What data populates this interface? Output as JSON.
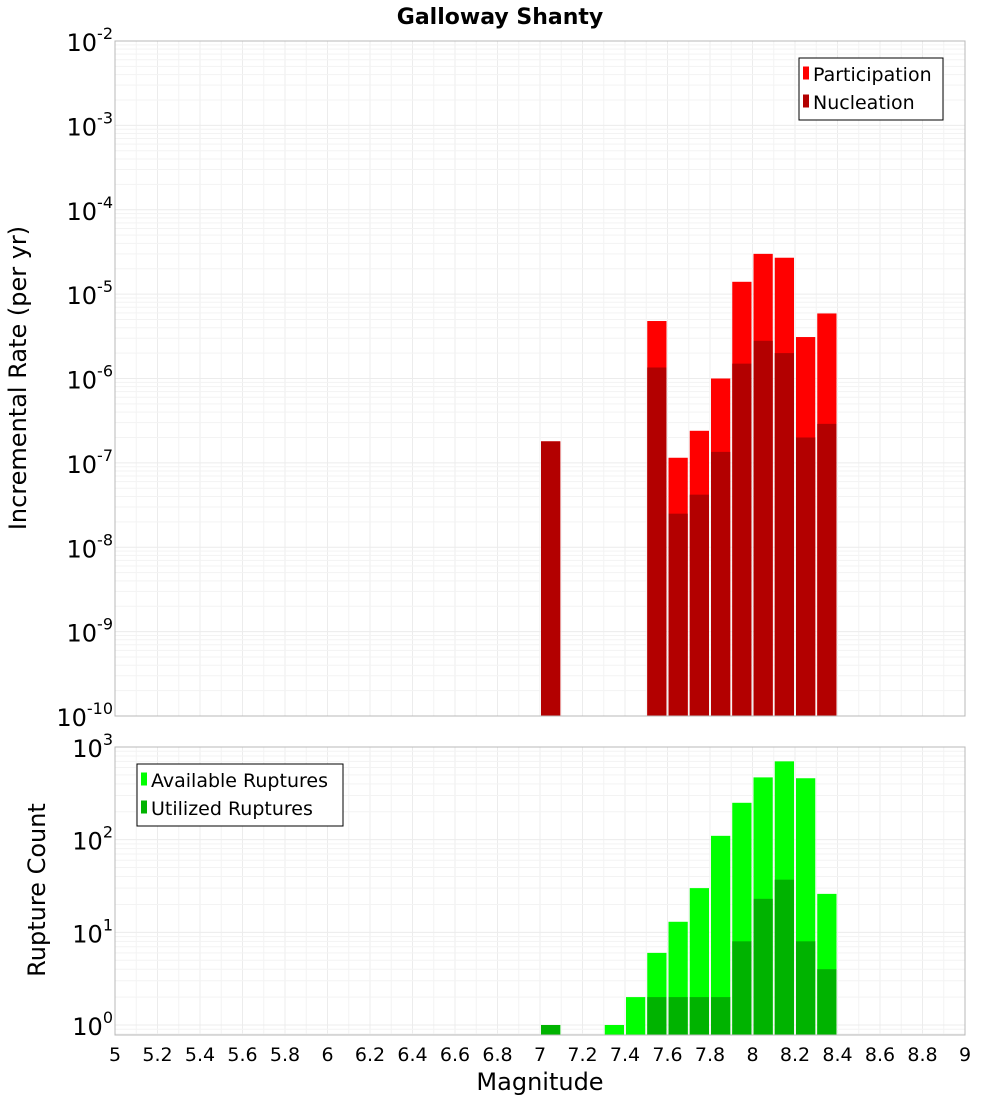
{
  "chart_data": [
    {
      "type": "bar",
      "title": "Galloway Shanty",
      "xlabel": "",
      "ylabel": "Incremental Rate (per yr)",
      "yscale": "log",
      "ylim": [
        1e-10,
        0.01
      ],
      "xlim": [
        5,
        9
      ],
      "grid": true,
      "legend_position": "top-right",
      "overlay": true,
      "y_tick_labels": [
        {
          "base": "10",
          "exp": "-10"
        },
        {
          "base": "10",
          "exp": "-9"
        },
        {
          "base": "10",
          "exp": "-8"
        },
        {
          "base": "10",
          "exp": "-7"
        },
        {
          "base": "10",
          "exp": "-6"
        },
        {
          "base": "10",
          "exp": "-5"
        },
        {
          "base": "10",
          "exp": "-4"
        },
        {
          "base": "10",
          "exp": "-3"
        },
        {
          "base": "10",
          "exp": "-2"
        }
      ],
      "bin_width": 0.1,
      "series": [
        {
          "name": "Participation",
          "color": "#ff0000",
          "points": [
            {
              "x": 7.05,
              "y": 1.8e-07
            },
            {
              "x": 7.55,
              "y": 4.8e-06
            },
            {
              "x": 7.65,
              "y": 1.15e-07
            },
            {
              "x": 7.75,
              "y": 2.4e-07
            },
            {
              "x": 7.85,
              "y": 1e-06
            },
            {
              "x": 7.95,
              "y": 1.4e-05
            },
            {
              "x": 8.05,
              "y": 3e-05
            },
            {
              "x": 8.15,
              "y": 2.7e-05
            },
            {
              "x": 8.25,
              "y": 3.1e-06
            },
            {
              "x": 8.35,
              "y": 5.9e-06
            }
          ]
        },
        {
          "name": "Nucleation",
          "color": "#b30000",
          "points": [
            {
              "x": 7.05,
              "y": 1.8e-07
            },
            {
              "x": 7.55,
              "y": 1.35e-06
            },
            {
              "x": 7.65,
              "y": 2.5e-08
            },
            {
              "x": 7.75,
              "y": 4.2e-08
            },
            {
              "x": 7.85,
              "y": 1.35e-07
            },
            {
              "x": 7.95,
              "y": 1.5e-06
            },
            {
              "x": 8.05,
              "y": 2.8e-06
            },
            {
              "x": 8.15,
              "y": 2e-06
            },
            {
              "x": 8.25,
              "y": 2e-07
            },
            {
              "x": 8.35,
              "y": 2.9e-07
            }
          ]
        }
      ]
    },
    {
      "type": "bar",
      "title": "",
      "xlabel": "Magnitude",
      "ylabel": "Rupture Count",
      "yscale": "log",
      "ylim": [
        0.78,
        1000
      ],
      "xlim": [
        5,
        9
      ],
      "grid": true,
      "legend_position": "top-left",
      "overlay": true,
      "x_tick_values": [
        5,
        5.2,
        5.4,
        5.6,
        5.8,
        6,
        6.2,
        6.4,
        6.6,
        6.8,
        7,
        7.2,
        7.4,
        7.6,
        7.8,
        8,
        8.2,
        8.4,
        8.6,
        8.8,
        9
      ],
      "x_tick_labels": [
        "5",
        "5.2",
        "5.4",
        "5.6",
        "5.8",
        "6",
        "6.2",
        "6.4",
        "6.6",
        "6.8",
        "7",
        "7.2",
        "7.4",
        "7.6",
        "7.8",
        "8",
        "8.2",
        "8.4",
        "8.6",
        "8.8",
        "9"
      ],
      "y_tick_labels": [
        {
          "base": "10",
          "exp": "0"
        },
        {
          "base": "10",
          "exp": "1"
        },
        {
          "base": "10",
          "exp": "2"
        },
        {
          "base": "10",
          "exp": "3"
        }
      ],
      "bin_width": 0.1,
      "series": [
        {
          "name": "Available Ruptures",
          "color": "#00ff00",
          "points": [
            {
              "x": 7.05,
              "y": 1
            },
            {
              "x": 7.35,
              "y": 1
            },
            {
              "x": 7.45,
              "y": 2
            },
            {
              "x": 7.55,
              "y": 6
            },
            {
              "x": 7.65,
              "y": 13
            },
            {
              "x": 7.75,
              "y": 30
            },
            {
              "x": 7.85,
              "y": 110
            },
            {
              "x": 7.95,
              "y": 250
            },
            {
              "x": 8.05,
              "y": 470
            },
            {
              "x": 8.15,
              "y": 700
            },
            {
              "x": 8.25,
              "y": 460
            },
            {
              "x": 8.35,
              "y": 26
            }
          ]
        },
        {
          "name": "Utilized Ruptures",
          "color": "#00b300",
          "points": [
            {
              "x": 7.05,
              "y": 1
            },
            {
              "x": 7.55,
              "y": 2
            },
            {
              "x": 7.65,
              "y": 2
            },
            {
              "x": 7.75,
              "y": 2
            },
            {
              "x": 7.85,
              "y": 2
            },
            {
              "x": 7.95,
              "y": 8
            },
            {
              "x": 8.05,
              "y": 23
            },
            {
              "x": 8.15,
              "y": 37
            },
            {
              "x": 8.25,
              "y": 8
            },
            {
              "x": 8.35,
              "y": 4
            }
          ]
        }
      ]
    }
  ]
}
